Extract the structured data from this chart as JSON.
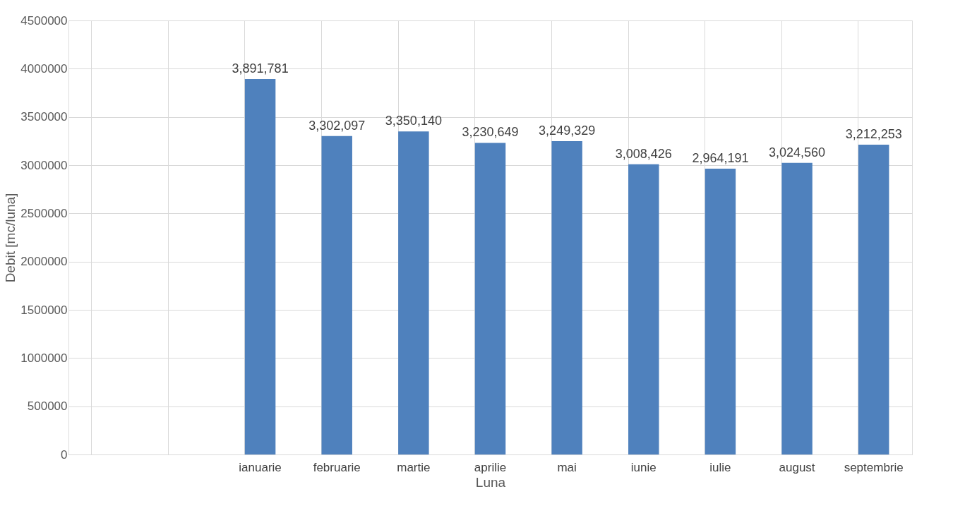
{
  "chart_data": {
    "type": "bar",
    "xlabel": "Luna",
    "ylabel": "Debit [mc/luna]",
    "categories": [
      null,
      null,
      "ianuarie",
      "februarie",
      "martie",
      "aprilie",
      "mai",
      "iunie",
      "iulie",
      "august",
      "septembrie"
    ],
    "values": [
      null,
      null,
      3891781,
      3302097,
      3350140,
      3230649,
      3249329,
      3008426,
      2964191,
      3024560,
      3212253
    ],
    "value_labels": [
      null,
      null,
      "3,891,781",
      "3,302,097",
      "3,350,140",
      "3,230,649",
      "3,249,329",
      "3,008,426",
      "2,964,191",
      "3,024,560",
      "3,212,253"
    ],
    "color": "#4f81bd",
    "ylim": [
      0,
      4500000
    ],
    "yticks": [
      0,
      500000,
      1000000,
      1500000,
      2000000,
      2500000,
      3000000,
      3500000,
      4000000,
      4500000
    ],
    "grid": true
  }
}
